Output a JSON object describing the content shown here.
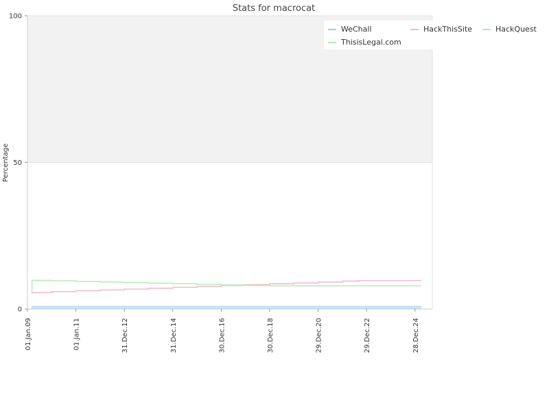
{
  "chart_data": {
    "type": "line",
    "title": "Stats for macrocat",
    "xlabel": "",
    "ylabel": "Percentage",
    "ylim": [
      0,
      100
    ],
    "xlim": [
      "2009-01-01",
      "2025-09-15"
    ],
    "y_ticks": [
      0,
      50,
      100
    ],
    "x_ticks": [
      {
        "date": "2009-01-01",
        "label": "01.Jan.09"
      },
      {
        "date": "2011-01-01",
        "label": "01.Jan.11"
      },
      {
        "date": "2012-12-31",
        "label": "31.Dec.12"
      },
      {
        "date": "2014-12-31",
        "label": "31.Dec.14"
      },
      {
        "date": "2016-12-30",
        "label": "30.Dec.16"
      },
      {
        "date": "2018-12-30",
        "label": "30.Dec.18"
      },
      {
        "date": "2020-12-29",
        "label": "29.Dec.20"
      },
      {
        "date": "2022-12-29",
        "label": "29.Dec.22"
      },
      {
        "date": "2024-12-28",
        "label": "28.Dec.24"
      }
    ],
    "grid": true,
    "legend_position": "top-right",
    "bands": [
      {
        "from": 50,
        "to": 100,
        "color": "#f2f2f2"
      }
    ],
    "series": [
      {
        "name": "WeChall",
        "color": "#a8c8e8",
        "style": "step",
        "x": [
          "2009-03-01",
          "2025-04-01"
        ],
        "y": [
          0.8,
          0.8
        ]
      },
      {
        "name": "HackThisSite",
        "color": "#f4b6cf",
        "style": "step",
        "x": [
          "2009-03-01",
          "2009-04-01",
          "2010-01-01",
          "2011-01-01",
          "2012-01-01",
          "2013-01-01",
          "2014-01-01",
          "2015-01-01",
          "2016-01-01",
          "2017-01-01",
          "2018-01-01",
          "2019-01-01",
          "2020-01-01",
          "2021-01-01",
          "2022-01-01",
          "2022-09-01",
          "2025-04-01"
        ],
        "y": [
          5.5,
          5.6,
          5.9,
          6.2,
          6.5,
          6.8,
          7.1,
          7.4,
          7.7,
          8.0,
          8.3,
          8.6,
          8.9,
          9.2,
          9.5,
          9.7,
          9.7
        ]
      },
      {
        "name": "HackQuest",
        "color": "#a8e4e4",
        "style": "step",
        "x": [
          "2009-03-01",
          "2025-04-01"
        ],
        "y": [
          0.2,
          0.2
        ]
      },
      {
        "name": "ThisisLegal.com",
        "color": "#b4ecb4",
        "style": "step",
        "x": [
          "2009-03-01",
          "2009-03-10",
          "2010-01-01",
          "2011-01-01",
          "2012-01-01",
          "2013-01-01",
          "2014-01-01",
          "2015-01-01",
          "2016-01-01",
          "2017-01-01",
          "2018-01-01",
          "2019-01-01",
          "2025-04-01"
        ],
        "y": [
          5.8,
          9.8,
          9.6,
          9.4,
          9.2,
          9.0,
          8.8,
          8.6,
          8.4,
          8.2,
          8.0,
          7.9,
          7.9
        ]
      }
    ]
  }
}
